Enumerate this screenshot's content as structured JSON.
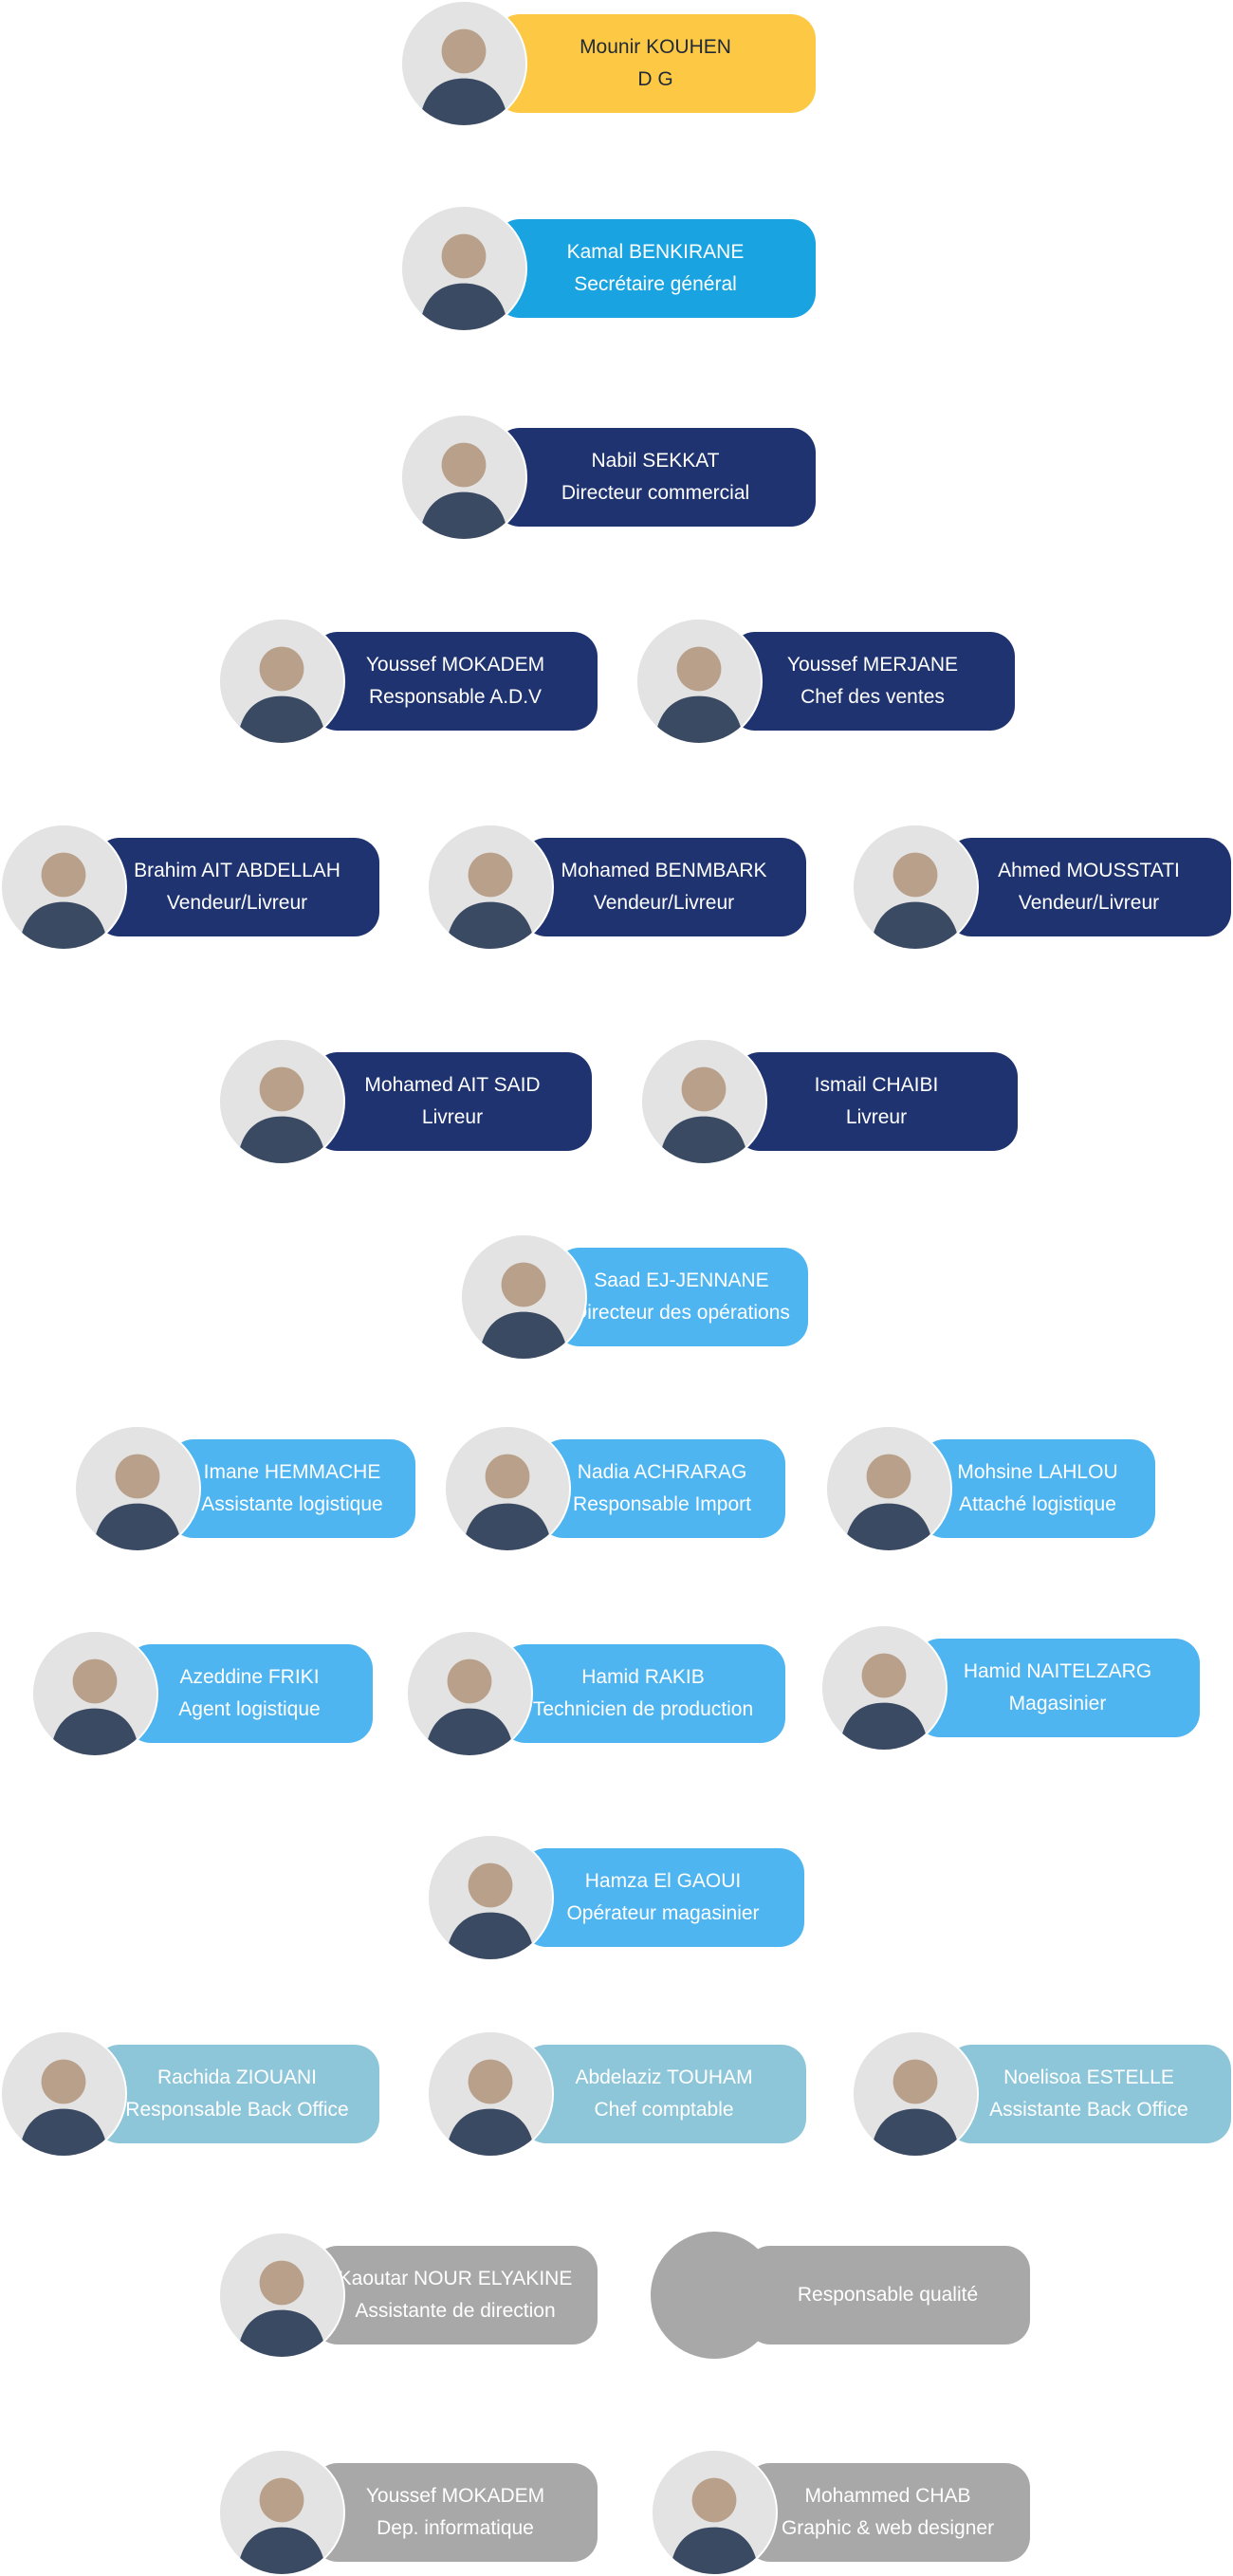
{
  "chart": {
    "executive": [
      {
        "name": "Mounir KOUHEN",
        "title": "D G",
        "color": "#fdc944"
      },
      {
        "name": "Kamal BENKIRANE",
        "title": "Secrétaire général",
        "color": "#1aa3e1"
      }
    ],
    "commercial": {
      "director": {
        "name": "Nabil SEKKAT",
        "title": "Directeur commercial"
      },
      "managers": [
        {
          "name": "Youssef MOKADEM",
          "title": "Responsable A.D.V"
        },
        {
          "name": "Youssef MERJANE",
          "title": "Chef des ventes"
        }
      ],
      "sellers": [
        {
          "name": "Brahim AIT ABDELLAH",
          "title": "Vendeur/Livreur"
        },
        {
          "name": "Mohamed BENMBARK",
          "title": "Vendeur/Livreur"
        },
        {
          "name": "Ahmed MOUSSTATI",
          "title": "Vendeur/Livreur"
        }
      ],
      "deliverers": [
        {
          "name": "Mohamed AIT SAID",
          "title": "Livreur"
        },
        {
          "name": "Ismail CHAIBI",
          "title": "Livreur"
        }
      ]
    },
    "operations": {
      "director": {
        "name": "Saad EJ-JENNANE",
        "title": "Directeur des opérations"
      },
      "row1": [
        {
          "name": "Imane HEMMACHE",
          "title": "Assistante logistique"
        },
        {
          "name": "Nadia ACHRARAG",
          "title": "Responsable Import"
        },
        {
          "name": "Mohsine LAHLOU",
          "title": "Attaché logistique"
        }
      ],
      "row2": [
        {
          "name": "Azeddine FRIKI",
          "title": "Agent logistique"
        },
        {
          "name": "Hamid RAKIB",
          "title": "Technicien de production"
        },
        {
          "name": "Hamid NAITELZARG",
          "title": "Magasinier"
        }
      ],
      "row3": [
        {
          "name": "Hamza El GAOUI",
          "title": "Opérateur magasinier"
        }
      ]
    },
    "backoffice": [
      {
        "name": "Rachida ZIOUANI",
        "title": "Responsable Back Office"
      },
      {
        "name": "Abdelaziz TOUHAM",
        "title": "Chef comptable"
      },
      {
        "name": "Noelisoa ESTELLE",
        "title": "Assistante Back Office"
      }
    ],
    "support": {
      "assistant": {
        "name": "Kaoutar NOUR ELYAKINE",
        "title": "Assistante de direction"
      },
      "quality": {
        "title": "Responsable qualité"
      },
      "it": {
        "name": "Youssef MOKADEM",
        "title": "Dep. informatique"
      },
      "design": {
        "name": "Mohammed CHAB",
        "title": "Graphic & web designer"
      }
    }
  },
  "colors": {
    "yellow": "#fdc944",
    "blue": "#1aa3e1",
    "navy": "#1f3370",
    "light_blue": "#4fb5f0",
    "teal": "#8ec6d9",
    "gray": "#a8a8a8"
  },
  "icons": {
    "avatar": "person-avatar-icon"
  }
}
